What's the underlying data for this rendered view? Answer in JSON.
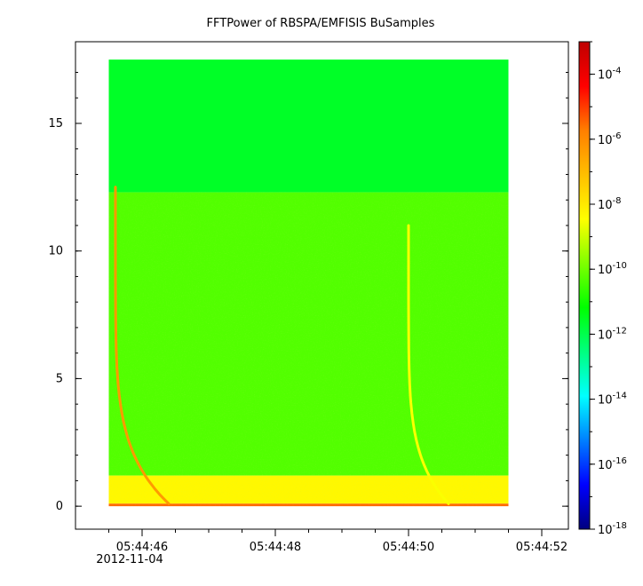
{
  "chart_data": {
    "type": "heatmap",
    "title": "FFTPower of RBSPA/EMFISIS  BuSamples",
    "x": {
      "ticks": [
        {
          "value": "05:44:46",
          "sublabel": "2012-11-04"
        },
        {
          "value": "05:44:48"
        },
        {
          "value": "05:44:50"
        },
        {
          "value": "05:44:52"
        }
      ],
      "minor_ticks": [
        "05:44:45.5",
        "05:44:46",
        "05:44:46.5",
        "05:44:47",
        "05:44:47.5",
        "05:44:48",
        "05:44:48.5",
        "05:44:49",
        "05:44:49.5",
        "05:44:50",
        "05:44:50.5",
        "05:44:51",
        "05:44:51.5",
        "05:44:52"
      ],
      "range": [
        "05:44:45.0",
        "05:44:52.4"
      ],
      "data_extent": [
        "05:44:45.5",
        "05:44:51.5"
      ]
    },
    "y": {
      "ticks": [
        0,
        5,
        10,
        15
      ],
      "minor_ticks": [
        0,
        1,
        2,
        3,
        4,
        5,
        6,
        7,
        8,
        9,
        10,
        11,
        12,
        13,
        14,
        15,
        16,
        17
      ],
      "range": [
        -0.9,
        18.2
      ],
      "data_extent": [
        0,
        17.5
      ]
    },
    "colorbar": {
      "scale": "log",
      "range": [
        1e-18,
        0.001
      ],
      "tick_labels": [
        {
          "base": "10",
          "exp": "-4",
          "value": 0.0001
        },
        {
          "base": "10",
          "exp": "-6",
          "value": 1e-06
        },
        {
          "base": "10",
          "exp": "-8",
          "value": 1e-08
        },
        {
          "base": "10",
          "exp": "-10",
          "value": 1e-10
        },
        {
          "base": "10",
          "exp": "-12",
          "value": 1e-12
        },
        {
          "base": "10",
          "exp": "-14",
          "value": 1e-14
        },
        {
          "base": "10",
          "exp": "-16",
          "value": 1e-16
        },
        {
          "base": "10",
          "exp": "-18",
          "value": 1e-18
        }
      ],
      "palette": [
        "#00007f",
        "#0000ff",
        "#007fff",
        "#00ffff",
        "#00ff7f",
        "#00ff00",
        "#7fff00",
        "#ffff00",
        "#ffbf00",
        "#ff7f00",
        "#ff0000",
        "#bf0000"
      ]
    },
    "regions": [
      {
        "y_range": [
          12.3,
          17.5
        ],
        "log_power": -11.6
      },
      {
        "y_range": [
          1.2,
          12.3
        ],
        "log_power": -10.3
      },
      {
        "y_range": [
          0.1,
          1.2
        ],
        "log_power": -8.3
      },
      {
        "y_range": [
          0,
          0.1
        ],
        "log_power": -5.5
      }
    ],
    "features": [
      {
        "type": "dispersive whistler",
        "time_range": [
          "05:44:45.6",
          "05:44:46.4"
        ],
        "freq_range": [
          0.1,
          12.5
        ],
        "log_power": -6.3
      },
      {
        "type": "dispersive whistler",
        "time_range": [
          "05:44:50.0",
          "05:44:50.6"
        ],
        "freq_range": [
          0.1,
          11.0
        ],
        "log_power": -8.5
      }
    ]
  }
}
